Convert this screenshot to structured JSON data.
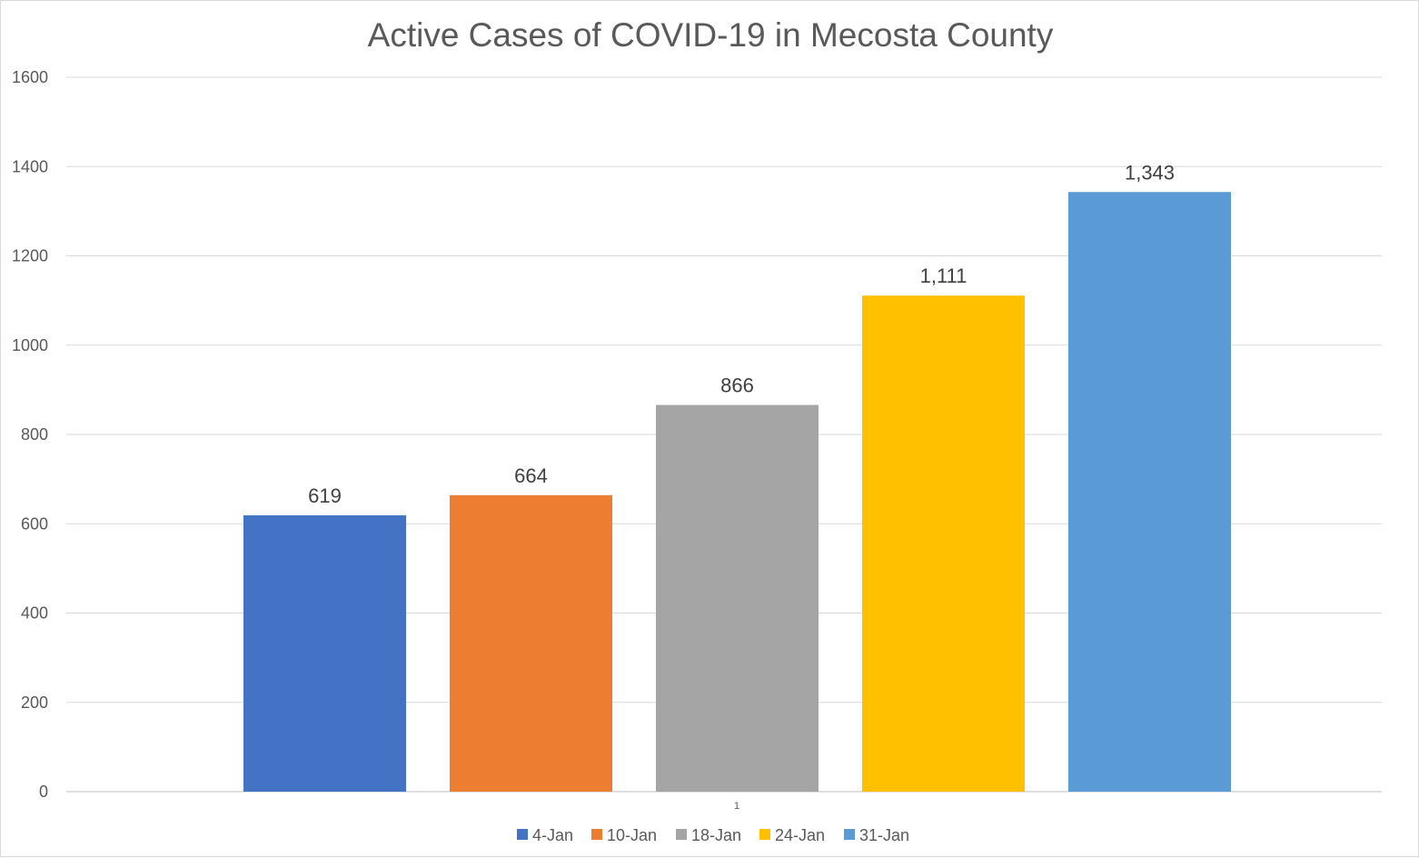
{
  "chart_data": {
    "type": "bar",
    "title": "Active Cases of COVID-19 in Mecosta County",
    "categories": [
      "1"
    ],
    "series": [
      {
        "name": "4-Jan",
        "values": [
          619
        ],
        "color": "#4472C4",
        "label": "619"
      },
      {
        "name": "10-Jan",
        "values": [
          664
        ],
        "color": "#ED7D31",
        "label": "664"
      },
      {
        "name": "18-Jan",
        "values": [
          866
        ],
        "color": "#A5A5A5",
        "label": "866"
      },
      {
        "name": "24-Jan",
        "values": [
          1111
        ],
        "color": "#FFC000",
        "label": "1,111"
      },
      {
        "name": "31-Jan",
        "values": [
          1343
        ],
        "color": "#5B9BD5",
        "label": "1,343"
      }
    ],
    "yticks": [
      "0",
      "200",
      "400",
      "600",
      "800",
      "1000",
      "1200",
      "1400",
      "1600"
    ],
    "ylim": [
      0,
      1600
    ],
    "xlabel": "",
    "ylabel": "",
    "grid": true,
    "legend": "bottom"
  }
}
